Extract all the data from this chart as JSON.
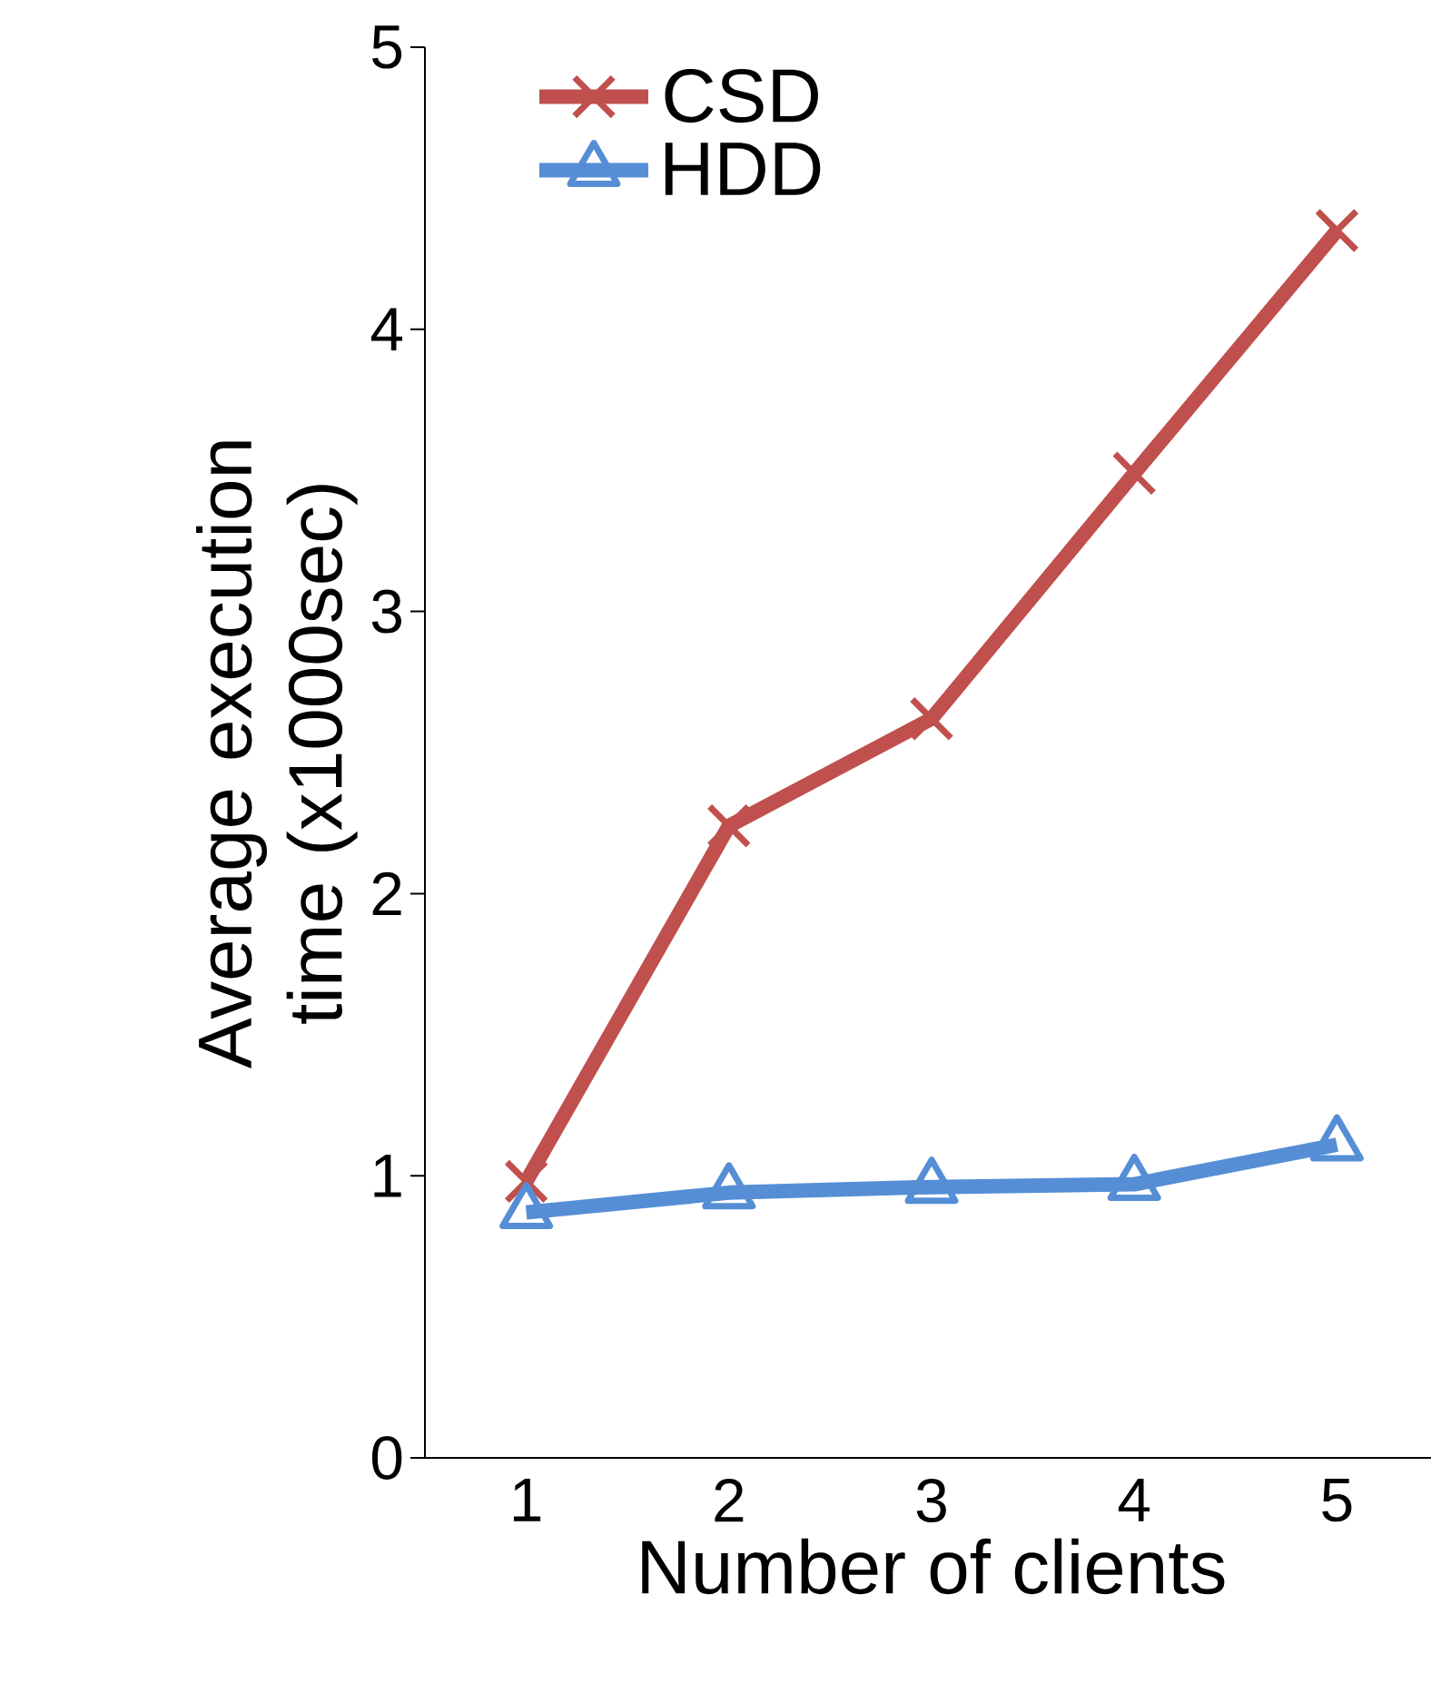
{
  "chart_data": {
    "type": "line",
    "xlabel": "Number of clients",
    "ylabel": "Average execution time (x1000sec)",
    "categories": [
      "1",
      "2",
      "3",
      "4",
      "5"
    ],
    "ylim": [
      0,
      5
    ],
    "yticks": [
      0,
      1,
      2,
      3,
      4,
      5
    ],
    "grid": false,
    "legend": "top left",
    "line_style": "solid",
    "series": [
      {
        "name": "CSD",
        "color": "#c0504d",
        "marker": "cross",
        "values": [
          0.98,
          2.24,
          2.62,
          3.49,
          4.35
        ]
      },
      {
        "name": "HDD",
        "color": "#558ed5",
        "marker": "triangle",
        "values": [
          0.87,
          0.94,
          0.96,
          0.97,
          1.11
        ]
      }
    ]
  }
}
